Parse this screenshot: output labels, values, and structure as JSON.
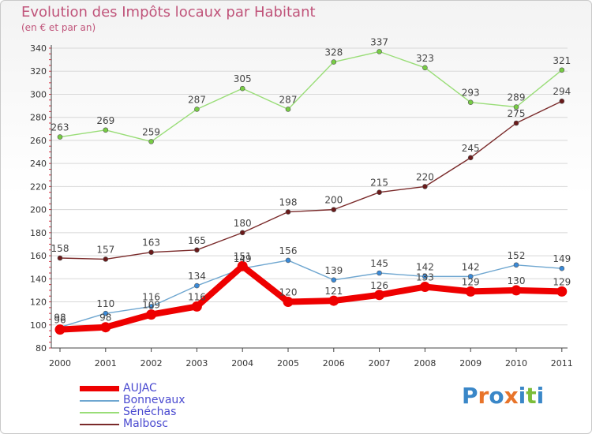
{
  "header": {
    "title": "Evolution des Impôts locaux par Habitant",
    "subtitle": "(en € et par an)"
  },
  "logo": {
    "text": "Proxiti",
    "letter_colors": [
      "#3a87c8",
      "#e8742a",
      "#3a87c8",
      "#e8742a",
      "#3a87c8",
      "#7cbd3a",
      "#3a87c8"
    ]
  },
  "chart_data": {
    "type": "line",
    "title": "Evolution des Impôts locaux par Habitant",
    "subtitle": "(en € et par an)",
    "xlabel": "",
    "ylabel": "",
    "categories": [
      "2000",
      "2001",
      "2002",
      "2003",
      "2004",
      "2005",
      "2006",
      "2007",
      "2008",
      "2009",
      "2010",
      "2011"
    ],
    "ylim": [
      80,
      340
    ],
    "yticks": [
      80,
      100,
      120,
      140,
      160,
      180,
      200,
      220,
      240,
      260,
      280,
      300,
      320,
      340
    ],
    "grid": "horizontal",
    "legend_position": "bottom-left",
    "series": [
      {
        "name": "AUJAC",
        "values": [
          96,
          98,
          109,
          116,
          151,
          120,
          121,
          126,
          133,
          129,
          130,
          129
        ],
        "color": "#ee0000",
        "thick": true
      },
      {
        "name": "Bonnevaux",
        "values": [
          98,
          110,
          116,
          134,
          149,
          156,
          139,
          145,
          142,
          142,
          152,
          149
        ],
        "color": "#6ea6d0",
        "marker_color": "#3a8ad8",
        "thick": false
      },
      {
        "name": "Sénéchas",
        "values": [
          263,
          269,
          259,
          287,
          305,
          287,
          328,
          337,
          323,
          293,
          289,
          321
        ],
        "color": "#99dd77",
        "marker_color": "#77cc44",
        "thick": false
      },
      {
        "name": "Malbosc",
        "values": [
          158,
          157,
          163,
          165,
          180,
          198,
          200,
          215,
          220,
          245,
          275,
          294
        ],
        "color": "#7a2a2a",
        "marker_color": "#6a1a1a",
        "thick": false
      }
    ]
  }
}
